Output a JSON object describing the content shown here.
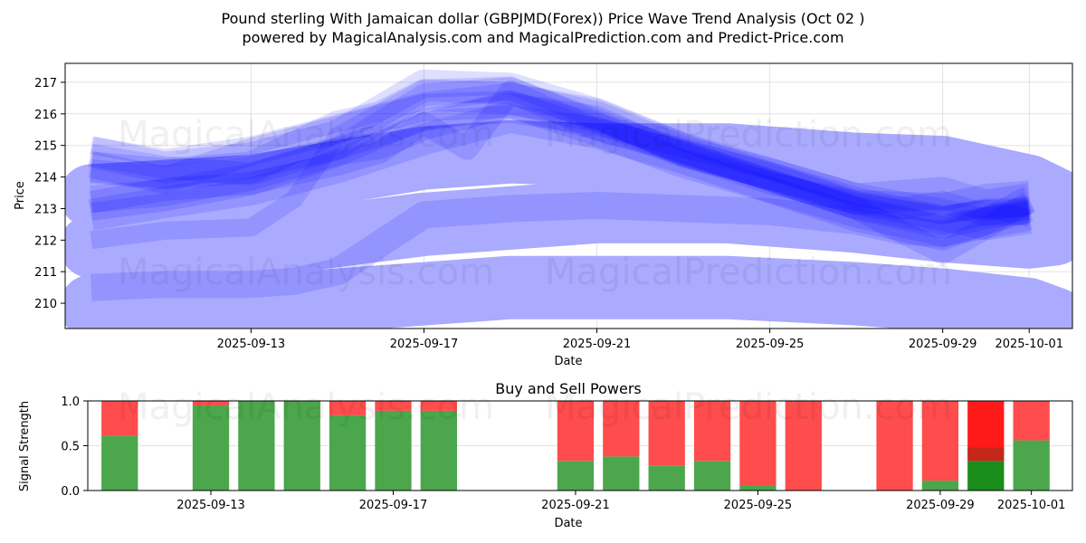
{
  "chart_data": [
    {
      "type": "line",
      "title": "Pound sterling With Jamaican dollar (GBPJMD(Forex)) Price Wave Trend Analysis (Oct 02 )",
      "subtitle": "powered by MagicalAnalysis.com and MagicalPrediction.com and Predict-Price.com",
      "xlabel": "Date",
      "ylabel": "Price",
      "ylim": [
        209.2,
        217.6
      ],
      "yticks": [
        210,
        211,
        212,
        213,
        214,
        215,
        216,
        217
      ],
      "xticks": [
        {
          "day": 13,
          "label": "2025-09-13"
        },
        {
          "day": 17,
          "label": "2025-09-17"
        },
        {
          "day": 21,
          "label": "2025-09-21"
        },
        {
          "day": 25,
          "label": "2025-09-25"
        },
        {
          "day": 29,
          "label": "2025-09-29"
        },
        {
          "day": 31,
          "label": "2025-10-01"
        }
      ],
      "xrange": [
        8.7,
        32.0
      ],
      "grid": true,
      "wave_color": "#0000ff",
      "band_color": "#aaaaff",
      "bands": [
        {
          "name": "lower-band",
          "x": [
            9.3,
            13,
            17,
            19,
            21,
            24,
            27,
            29,
            31,
            31.6
          ],
          "y": [
            209.9,
            209.9,
            210.3,
            210.5,
            210.5,
            210.5,
            210.3,
            210.1,
            209.8,
            209.5
          ]
        },
        {
          "name": "middle-band",
          "x": [
            9.3,
            13,
            17,
            19,
            21,
            24,
            27,
            29,
            31,
            31.6
          ],
          "y": [
            211.8,
            211.8,
            212.5,
            212.7,
            212.9,
            212.9,
            212.6,
            212.3,
            212.1,
            212.2
          ]
        },
        {
          "name": "upper-band",
          "x": [
            9.3,
            13,
            17,
            19,
            21,
            24,
            27,
            29,
            31,
            31.6
          ],
          "y": [
            213.4,
            213.7,
            214.6,
            214.8,
            214.7,
            214.7,
            214.4,
            214.3,
            213.7,
            213.3
          ]
        }
      ],
      "series": [
        {
          "name": "wave-1",
          "x": [
            9.3,
            11,
            13,
            14,
            15,
            17,
            19,
            21,
            23,
            25,
            27,
            29,
            30,
            31
          ],
          "y": [
            212.0,
            212.3,
            212.4,
            213.3,
            215.3,
            216.8,
            216.9,
            215.8,
            214.6,
            213.9,
            213.2,
            212.8,
            213.0,
            213.0
          ]
        },
        {
          "name": "wave-2",
          "x": [
            9.3,
            11,
            13,
            15,
            17,
            19,
            21,
            23,
            25,
            27,
            29,
            30,
            31
          ],
          "y": [
            214.7,
            214.3,
            214.1,
            214.9,
            216.6,
            216.8,
            215.8,
            214.8,
            213.9,
            213.0,
            212.4,
            212.7,
            212.9
          ]
        },
        {
          "name": "wave-3",
          "x": [
            9.3,
            11,
            13,
            15,
            16,
            17,
            19,
            21,
            23,
            25,
            27,
            29,
            30,
            31
          ],
          "y": [
            213.3,
            213.5,
            214.0,
            214.8,
            215.0,
            215.6,
            216.3,
            215.6,
            214.8,
            214.0,
            213.1,
            212.6,
            212.9,
            212.9
          ]
        },
        {
          "name": "wave-4",
          "x": [
            9.3,
            11,
            13,
            15,
            16,
            17,
            19,
            21,
            23,
            25,
            27,
            29,
            30,
            31
          ],
          "y": [
            214.3,
            214.1,
            214.3,
            215.6,
            215.9,
            216.6,
            216.5,
            215.9,
            214.8,
            214.1,
            213.3,
            212.8,
            212.5,
            212.7
          ]
        },
        {
          "name": "wave-5",
          "x": [
            9.3,
            11,
            13,
            15,
            17,
            19,
            21,
            23,
            25,
            27,
            29,
            30,
            31
          ],
          "y": [
            212.9,
            213.2,
            213.7,
            214.6,
            215.8,
            216.0,
            215.6,
            214.9,
            214.2,
            213.4,
            212.8,
            213.0,
            212.7
          ]
        },
        {
          "name": "wave-6",
          "x": [
            9.3,
            11,
            13,
            15,
            16,
            17,
            18,
            19,
            21,
            23,
            25,
            27,
            29,
            31
          ],
          "y": [
            213.2,
            213.6,
            213.8,
            214.4,
            214.8,
            215.7,
            214.9,
            216.7,
            215.5,
            214.8,
            213.9,
            213.0,
            211.6,
            213.2
          ]
        },
        {
          "name": "wave-7",
          "x": [
            9.3,
            11,
            13,
            15,
            17,
            19,
            21,
            23,
            25,
            27,
            29,
            30,
            31
          ],
          "y": [
            214.4,
            213.9,
            214.8,
            215.5,
            216.2,
            216.3,
            215.4,
            214.4,
            213.6,
            212.7,
            212.1,
            212.6,
            213.3
          ]
        },
        {
          "name": "wave-8",
          "x": [
            9.3,
            11,
            13,
            15,
            17,
            19,
            21,
            23,
            25,
            27,
            29,
            31
          ],
          "y": [
            212.8,
            213.2,
            213.6,
            214.3,
            215.2,
            215.9,
            215.4,
            214.6,
            213.7,
            212.9,
            212.3,
            212.8
          ]
        },
        {
          "name": "wave-9",
          "x": [
            9.3,
            11,
            13,
            15,
            17,
            19,
            21,
            23,
            25,
            27,
            29,
            30,
            31
          ],
          "y": [
            215.0,
            214.6,
            215.0,
            215.7,
            216.4,
            216.7,
            216.2,
            215.1,
            214.2,
            213.3,
            213.2,
            213.5,
            213.6
          ]
        },
        {
          "name": "wave-10",
          "x": [
            9.3,
            11,
            13,
            15,
            17,
            19,
            21,
            23,
            25,
            27,
            28,
            29,
            30,
            31
          ],
          "y": [
            214.2,
            214.0,
            214.3,
            214.9,
            215.8,
            216.3,
            215.9,
            214.7,
            213.8,
            213.2,
            213.0,
            213.2,
            212.8,
            213.0
          ]
        },
        {
          "name": "wave-11",
          "x": [
            9.3,
            11,
            13,
            14,
            15,
            17,
            19,
            21,
            23,
            25,
            27,
            28,
            29,
            30,
            31
          ],
          "y": [
            210.5,
            210.6,
            210.6,
            210.7,
            211.0,
            212.8,
            213.0,
            213.1,
            213.0,
            212.9,
            212.6,
            212.3,
            212.2,
            212.6,
            213.0
          ]
        },
        {
          "name": "wave-12",
          "x": [
            9.3,
            11,
            13,
            15,
            17,
            19,
            21,
            23,
            25,
            27,
            29,
            30,
            31
          ],
          "y": [
            214.8,
            214.3,
            214.6,
            215.3,
            216.9,
            216.8,
            216.0,
            214.9,
            214.1,
            213.3,
            213.5,
            213.1,
            213.3
          ]
        }
      ]
    },
    {
      "type": "bar",
      "title": "Buy and Sell Powers",
      "xlabel": "Date",
      "ylabel": "Signal Strength",
      "ylim": [
        0,
        1.0
      ],
      "yticks": [
        "0.0",
        "0.5",
        "1.0"
      ],
      "xticks": [
        {
          "day": 13,
          "label": "2025-09-13"
        },
        {
          "day": 17,
          "label": "2025-09-17"
        },
        {
          "day": 21,
          "label": "2025-09-21"
        },
        {
          "day": 25,
          "label": "2025-09-25"
        },
        {
          "day": 29,
          "label": "2025-09-29"
        },
        {
          "day": 31,
          "label": "2025-10-01"
        }
      ],
      "xrange": [
        10.3,
        31.9
      ],
      "buy_color": "#4ca64c",
      "sell_color": "#ff4c4c",
      "buy_color_strong": "#1a8c1a",
      "sell_color_strong": "#ff1a1a",
      "bars": [
        {
          "day": 11,
          "buy": 0.61,
          "sell": 0.39
        },
        {
          "day": 13,
          "buy": 0.95,
          "sell": 0.05
        },
        {
          "day": 14,
          "buy": 1.0,
          "sell": 0.0
        },
        {
          "day": 15,
          "buy": 1.0,
          "sell": 0.0
        },
        {
          "day": 16,
          "buy": 0.84,
          "sell": 0.16
        },
        {
          "day": 17,
          "buy": 0.89,
          "sell": 0.11
        },
        {
          "day": 18,
          "buy": 0.89,
          "sell": 0.11
        },
        {
          "day": 21,
          "buy": 0.33,
          "sell": 0.67
        },
        {
          "day": 22,
          "buy": 0.38,
          "sell": 0.62
        },
        {
          "day": 23,
          "buy": 0.28,
          "sell": 0.72
        },
        {
          "day": 24,
          "buy": 0.33,
          "sell": 0.67
        },
        {
          "day": 25,
          "buy": 0.06,
          "sell": 0.94
        },
        {
          "day": 26,
          "buy": 0.0,
          "sell": 1.0
        },
        {
          "day": 28,
          "buy": 0.0,
          "sell": 1.0
        },
        {
          "day": 29,
          "buy": 0.11,
          "sell": 0.89
        },
        {
          "day": 30,
          "buy": 0.33,
          "sell": 0.67,
          "strong": true
        },
        {
          "day": 31,
          "buy": 0.56,
          "sell": 0.44
        }
      ]
    }
  ],
  "watermarks": [
    "MagicalAnalysis.com",
    "MagicalPrediction.com"
  ]
}
